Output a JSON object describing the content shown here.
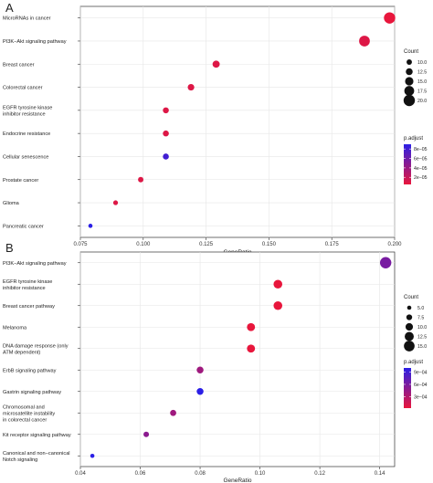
{
  "panels": [
    {
      "letter": "A",
      "chart_data": {
        "type": "scatter",
        "categories": [
          "MicroRNAs in cancer",
          "PI3K−Akt signaling pathway",
          "Breast cancer",
          "Colorectal cancer",
          "EGFR tyrosine kinase inhibitor resistance",
          "Endocrine resistance",
          "Cellular senescence",
          "Prostate cancer",
          "Glioma",
          "Pancreatic cancer"
        ],
        "category_lines": [
          [
            "MicroRNAs in cancer"
          ],
          [
            "PI3K−Akt signaling pathway"
          ],
          [
            "Breast cancer"
          ],
          [
            "Colorectal cancer"
          ],
          [
            "EGFR tyrosine kinase",
            "inhibitor resistance"
          ],
          [
            "Endocrine resistance"
          ],
          [
            "Cellular senescence"
          ],
          [
            "Prostate cancer"
          ],
          [
            "Glioma"
          ],
          [
            "Pancreatic cancer"
          ]
        ],
        "x": [
          0.198,
          0.188,
          0.129,
          0.119,
          0.109,
          0.109,
          0.109,
          0.099,
          0.089,
          0.079
        ],
        "count": [
          20,
          19,
          13,
          12,
          11,
          11,
          11,
          10,
          9,
          8
        ],
        "p_adjust": [
          5e-06,
          1e-05,
          1e-05,
          1e-05,
          1e-05,
          1e-05,
          8e-05,
          1e-05,
          1e-05,
          9e-05
        ],
        "xlabel": "GeneRatio",
        "xlim": [
          0.075,
          0.2
        ],
        "xticks": [
          "0.075",
          "0.100",
          "0.125",
          "0.150",
          "0.175",
          "0.200"
        ],
        "xtick_values": [
          0.075,
          0.1,
          0.125,
          0.15,
          0.175,
          0.2
        ],
        "size_legend": {
          "title": "Count",
          "labels": [
            "10.0",
            "12.5",
            "15.0",
            "17.5",
            "20.0"
          ],
          "values": [
            10,
            12.5,
            15,
            17.5,
            20
          ],
          "domain": [
            8,
            20
          ]
        },
        "color_legend": {
          "title": "p.adjust",
          "labels": [
            "8e−05",
            "6e−05",
            "4e−05",
            "2e−05"
          ],
          "values": [
            8e-05,
            6e-05,
            4e-05,
            2e-05
          ],
          "domain": [
            5e-06,
            9e-05
          ]
        },
        "colors": {
          "low": "#e8163c",
          "high": "#2b1fe6"
        },
        "grid": true,
        "legend_position": "right"
      }
    },
    {
      "letter": "B",
      "chart_data": {
        "type": "scatter",
        "categories": [
          "PI3K−Akt signaling pathway",
          "EGFR tyrosine kinase inhibitor resistance",
          "Breast cancer pathway",
          "Melanoma",
          "DNA damage response (only ATM dependent)",
          "ErbB signaling pathway",
          "Gastrin signaling pathway",
          "Chromosomal and microsatellite instability in colorectal cancer",
          "Kit receptor signaling pathway",
          "Canonical and non−canonical Notch signaling"
        ],
        "category_lines": [
          [
            "PI3K−Akt signaling pathway"
          ],
          [
            "EGFR tyrosine kinase",
            "inhibitor resistance"
          ],
          [
            "Breast cancer pathway"
          ],
          [
            "Melanoma"
          ],
          [
            "DNA damage response (only",
            "ATM dependent)"
          ],
          [
            "ErbB signaling pathway"
          ],
          [
            "Gastrin signaling pathway"
          ],
          [
            "Chromosomal and",
            "microsatellite instability",
            "in colorectal cancer"
          ],
          [
            "Kit receptor signaling pathway"
          ],
          [
            "Canonical and non−canonical",
            "Notch signaling"
          ]
        ],
        "x": [
          0.142,
          0.106,
          0.106,
          0.097,
          0.097,
          0.08,
          0.08,
          0.071,
          0.062,
          0.044
        ],
        "count": [
          16,
          12,
          12,
          11,
          11,
          9,
          9,
          8,
          7,
          5
        ],
        "p_adjust": [
          0.0006,
          2e-05,
          2e-05,
          2e-05,
          2e-05,
          0.0004,
          0.001,
          0.0004,
          0.0005,
          0.001
        ],
        "xlabel": "GeneRatio",
        "xlim": [
          0.04,
          0.145
        ],
        "xticks": [
          "0.04",
          "0.06",
          "0.08",
          "0.10",
          "0.12",
          "0.14"
        ],
        "xtick_values": [
          0.04,
          0.06,
          0.08,
          0.1,
          0.12,
          0.14
        ],
        "size_legend": {
          "title": "Count",
          "labels": [
            "5.0",
            "7.5",
            "10.0",
            "12.5",
            "15.0"
          ],
          "values": [
            5,
            7.5,
            10,
            12.5,
            15
          ],
          "domain": [
            5,
            16
          ]
        },
        "color_legend": {
          "title": "p.adjust",
          "labels": [
            "9e−04",
            "6e−04",
            "3e−04"
          ],
          "values": [
            0.0009,
            0.0006,
            0.0003
          ],
          "domain": [
            2e-05,
            0.001
          ]
        },
        "colors": {
          "low": "#e8163c",
          "high": "#2b1fe6"
        },
        "grid": true,
        "legend_position": "right"
      }
    }
  ]
}
